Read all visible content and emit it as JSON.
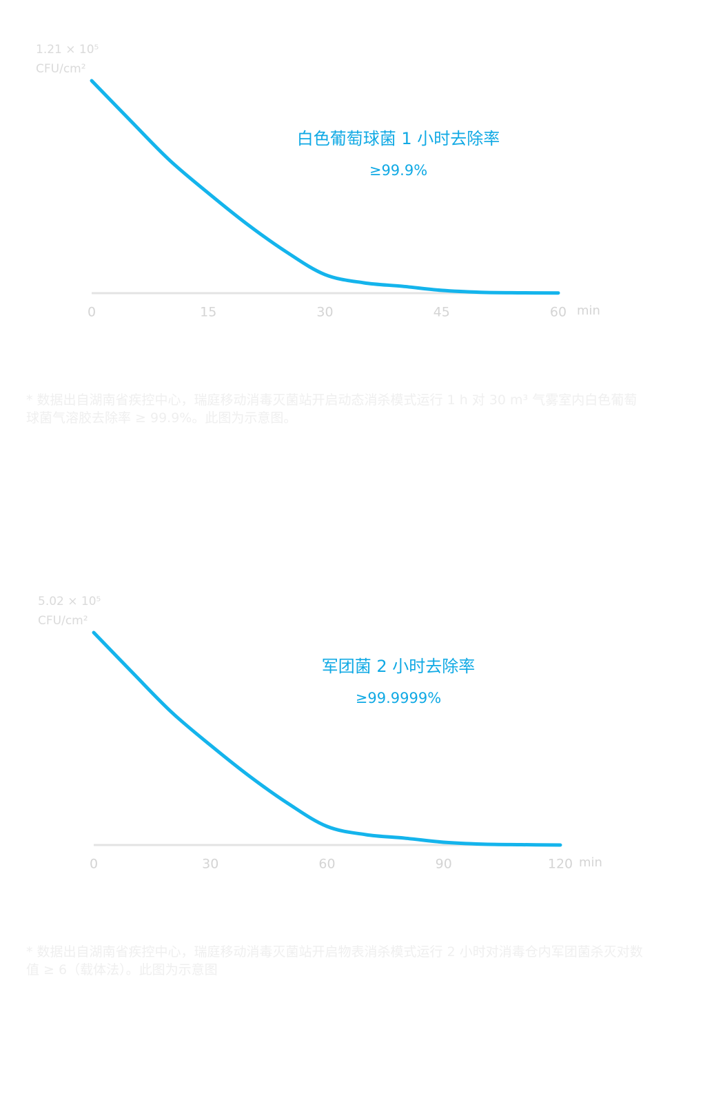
{
  "chart_data": [
    {
      "type": "line",
      "ylabel": "CFU/cm²",
      "annotation": "白色葡萄球菌 1 小时去除率",
      "annotation_value": "≥99.9%",
      "x_unit": "min",
      "x": [
        0,
        5,
        10,
        15,
        20,
        25,
        30,
        35,
        40,
        45,
        50,
        55,
        60
      ],
      "values": [
        121000,
        98200,
        75800,
        57000,
        39300,
        23600,
        10600,
        5900,
        3900,
        1600,
        500,
        200,
        121
      ],
      "color": "#14b4ec",
      "xlim": [
        0,
        60
      ],
      "xticks": [
        0,
        15,
        30,
        45,
        60
      ],
      "ylim": [
        0,
        121000
      ],
      "yticks": [
        {
          "value": 121000,
          "label": "1.21 × 10⁵"
        }
      ],
      "note": "* 数据出自湖南省疾控中心，瑞庭移动消毒灭菌站开启动态消杀模式运行 1 h 对 30 m³ 气雾室内白色葡萄球菌气溶胶去除率 ≥ 99.9%。此图为示意图。"
    },
    {
      "type": "line",
      "ylabel": "CFU/cm²",
      "annotation": "军团菌 2 小时去除率",
      "annotation_value": "≥99.9999%",
      "x_unit": "min",
      "x": [
        0,
        10,
        20,
        30,
        40,
        50,
        60,
        70,
        80,
        90,
        100,
        110,
        120
      ],
      "values": [
        502000,
        407000,
        314000,
        236000,
        163000,
        98000,
        44000,
        24500,
        16200,
        6600,
        2100,
        800,
        1
      ],
      "color": "#14b4ec",
      "xlim": [
        0,
        120
      ],
      "xticks": [
        0,
        30,
        60,
        90,
        120
      ],
      "ylim": [
        0,
        502000
      ],
      "yticks": [
        {
          "value": 502000,
          "label": "5.02 × 10⁵"
        }
      ],
      "note": "* 数据出自湖南省疾控中心，瑞庭移动消毒灭菌站开启物表消杀模式运行 2 小时对消毒仓内军团菌杀灭对数值 ≥ 6（载体法）。此图为示意图"
    }
  ]
}
